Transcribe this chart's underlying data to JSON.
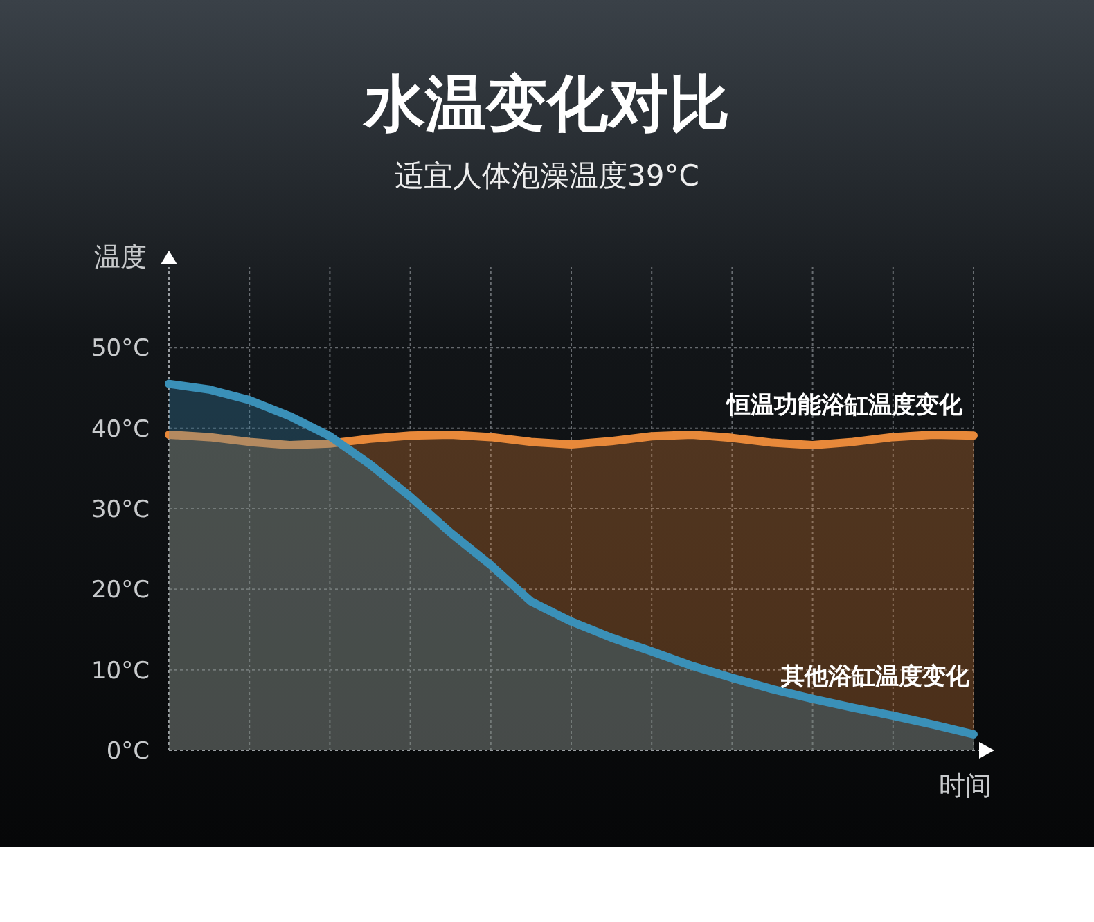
{
  "chart_data": {
    "type": "area",
    "title": "水温变化对比",
    "subtitle": "适宜人体泡澡温度39°C",
    "xlabel": "时间",
    "ylabel": "温度",
    "categories": [
      null,
      null,
      null,
      null,
      null,
      null,
      null,
      null,
      null,
      null,
      null,
      null,
      null,
      null,
      null,
      null,
      null,
      null,
      null,
      null,
      null
    ],
    "series": [
      {
        "name": "恒温功能浴缸温度变化",
        "color": "#e8893a",
        "values": [
          39.2,
          38.9,
          38.3,
          37.9,
          38.1,
          38.7,
          39.1,
          39.2,
          38.9,
          38.3,
          38.0,
          38.4,
          39.0,
          39.2,
          38.8,
          38.2,
          37.9,
          38.3,
          38.9,
          39.2,
          39.1
        ]
      },
      {
        "name": "其他浴缸温度变化",
        "color": "#3a90b8",
        "values": [
          45.5,
          44.8,
          43.5,
          41.5,
          39.0,
          35.5,
          31.5,
          27.0,
          23.0,
          18.5,
          16.0,
          14.0,
          12.3,
          10.5,
          9.0,
          7.6,
          6.4,
          5.3,
          4.3,
          3.2,
          2.0
        ]
      }
    ],
    "ylim": [
      0,
      60
    ],
    "yticks": [
      {
        "value": 0,
        "label": "0°C"
      },
      {
        "value": 10,
        "label": "10°C"
      },
      {
        "value": 20,
        "label": "20°C"
      },
      {
        "value": 30,
        "label": "30°C"
      },
      {
        "value": 40,
        "label": "40°C"
      },
      {
        "value": 50,
        "label": "50°C"
      }
    ],
    "grid": true
  }
}
